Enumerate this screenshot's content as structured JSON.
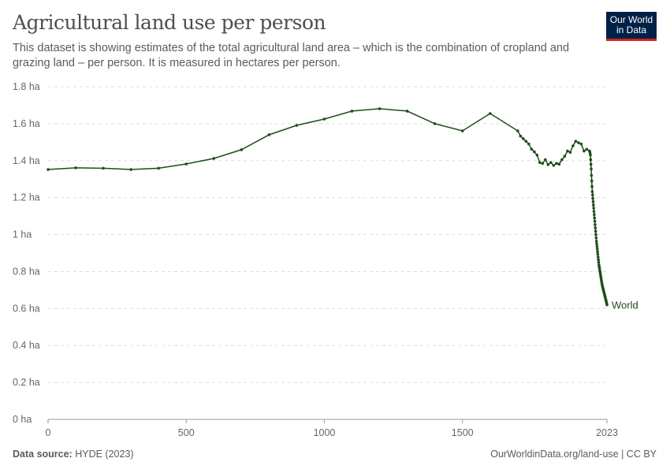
{
  "header": {
    "title": "Agricultural land use per person",
    "subtitle": "This dataset is showing estimates of the total agricultural land area – which is the combination of cropland and grazing land – per person. It is measured in hectares per person."
  },
  "logo": {
    "text": "Our World in Data",
    "colors": {
      "background": "#002147",
      "accent": "#ce261e"
    }
  },
  "footer": {
    "source_label": "Data source:",
    "source": "HYDE (2023)",
    "url": "OurWorldinData.org/land-use | CC BY"
  },
  "chart_data": {
    "type": "line",
    "title": "Agricultural land use per person",
    "xlim": [
      0,
      2023
    ],
    "ylim": [
      0,
      1.8
    ],
    "grid": "horizontal dashed",
    "x_ticks": [
      {
        "v": 0,
        "label": "0"
      },
      {
        "v": 500,
        "label": "500"
      },
      {
        "v": 1000,
        "label": "1000"
      },
      {
        "v": 1500,
        "label": "1500"
      },
      {
        "v": 2023,
        "label": "2023"
      }
    ],
    "y_ticks": [
      {
        "v": 0,
        "label": "0 ha"
      },
      {
        "v": 0.2,
        "label": "0.2 ha"
      },
      {
        "v": 0.4,
        "label": "0.4 ha"
      },
      {
        "v": 0.6,
        "label": "0.6 ha"
      },
      {
        "v": 0.8,
        "label": "0.8 ha"
      },
      {
        "v": 1,
        "label": "1 ha"
      },
      {
        "v": 1.2,
        "label": "1.2 ha"
      },
      {
        "v": 1.4,
        "label": "1.4 ha"
      },
      {
        "v": 1.6,
        "label": "1.6 ha"
      },
      {
        "v": 1.8,
        "label": "1.8 ha"
      }
    ],
    "series": [
      {
        "name": "World",
        "color": "#1f4d1a",
        "x": [
          0,
          100,
          200,
          300,
          400,
          500,
          600,
          700,
          800,
          900,
          1000,
          1100,
          1200,
          1300,
          1400,
          1500,
          1600,
          1700,
          1710,
          1720,
          1730,
          1740,
          1750,
          1760,
          1770,
          1780,
          1790,
          1800,
          1810,
          1820,
          1830,
          1840,
          1850,
          1860,
          1870,
          1880,
          1890,
          1900,
          1910,
          1920,
          1930,
          1940,
          1950,
          1960,
          1961,
          1962,
          1963,
          1964,
          1965,
          1966,
          1967,
          1968,
          1969,
          1970,
          1971,
          1972,
          1973,
          1974,
          1975,
          1976,
          1977,
          1978,
          1979,
          1980,
          1981,
          1982,
          1983,
          1984,
          1985,
          1986,
          1987,
          1988,
          1989,
          1990,
          1991,
          1992,
          1993,
          1994,
          1995,
          1996,
          1997,
          1998,
          1999,
          2000,
          2001,
          2002,
          2003,
          2004,
          2005,
          2006,
          2007,
          2008,
          2009,
          2010,
          2011,
          2012,
          2013,
          2014,
          2015,
          2016,
          2017,
          2018,
          2019,
          2020,
          2021,
          2022,
          2023
        ],
        "y": [
          1.352,
          1.361,
          1.359,
          1.352,
          1.359,
          1.382,
          1.412,
          1.459,
          1.54,
          1.591,
          1.625,
          1.668,
          1.681,
          1.668,
          1.6,
          1.561,
          1.655,
          1.561,
          1.533,
          1.519,
          1.505,
          1.49,
          1.462,
          1.448,
          1.43,
          1.39,
          1.385,
          1.405,
          1.378,
          1.39,
          1.374,
          1.385,
          1.381,
          1.405,
          1.424,
          1.452,
          1.445,
          1.48,
          1.505,
          1.497,
          1.49,
          1.452,
          1.462,
          1.452,
          1.448,
          1.44,
          1.43,
          1.405,
          1.38,
          1.355,
          1.32,
          1.29,
          1.26,
          1.232,
          1.215,
          1.196,
          1.178,
          1.16,
          1.143,
          1.125,
          1.108,
          1.09,
          1.072,
          1.054,
          1.036,
          1.018,
          1.0,
          0.982,
          0.964,
          0.95,
          0.936,
          0.922,
          0.907,
          0.893,
          0.878,
          0.864,
          0.85,
          0.836,
          0.827,
          0.818,
          0.808,
          0.799,
          0.79,
          0.78,
          0.771,
          0.762,
          0.752,
          0.743,
          0.734,
          0.725,
          0.719,
          0.713,
          0.707,
          0.701,
          0.695,
          0.689,
          0.683,
          0.677,
          0.671,
          0.665,
          0.659,
          0.653,
          0.647,
          0.641,
          0.635,
          0.628,
          0.62
        ]
      }
    ]
  }
}
